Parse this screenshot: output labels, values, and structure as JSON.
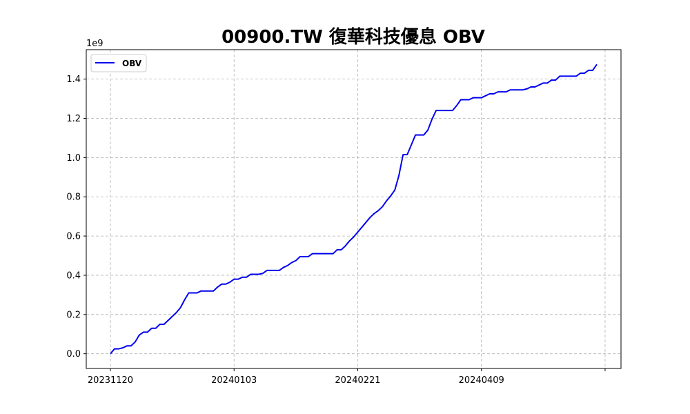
{
  "chart_data": {
    "type": "line",
    "title": "00900.TW 復華科技優息 OBV",
    "xlabel": "",
    "ylabel": "",
    "y_offset_label": "1e9",
    "ylim": [
      -0.075,
      1.55
    ],
    "y_ticks": [
      0.0,
      0.2,
      0.4,
      0.6,
      0.8,
      1.0,
      1.2,
      1.4
    ],
    "y_tick_labels": [
      "0.0",
      "0.2",
      "0.4",
      "0.6",
      "0.8",
      "1.0",
      "1.2",
      "1.4"
    ],
    "x_tick_labels": [
      "20231120",
      "20240103",
      "20240221",
      "20240409",
      ""
    ],
    "x_tick_index": [
      0,
      30,
      60,
      90,
      120
    ],
    "grid": true,
    "legend_position": "upper-left",
    "series": [
      {
        "name": "OBV",
        "color": "#0000ee",
        "values": [
          0.0,
          0.025,
          0.025,
          0.03,
          0.04,
          0.04,
          0.06,
          0.095,
          0.11,
          0.11,
          0.13,
          0.13,
          0.15,
          0.15,
          0.17,
          0.19,
          0.21,
          0.235,
          0.275,
          0.31,
          0.31,
          0.31,
          0.32,
          0.32,
          0.32,
          0.32,
          0.34,
          0.355,
          0.355,
          0.365,
          0.38,
          0.38,
          0.39,
          0.39,
          0.405,
          0.405,
          0.405,
          0.41,
          0.425,
          0.425,
          0.425,
          0.425,
          0.44,
          0.45,
          0.465,
          0.475,
          0.495,
          0.495,
          0.495,
          0.51,
          0.51,
          0.51,
          0.51,
          0.51,
          0.51,
          0.53,
          0.53,
          0.55,
          0.575,
          0.595,
          0.62,
          0.645,
          0.67,
          0.695,
          0.715,
          0.73,
          0.75,
          0.78,
          0.805,
          0.835,
          0.91,
          1.015,
          1.015,
          1.065,
          1.115,
          1.115,
          1.115,
          1.14,
          1.195,
          1.24,
          1.24,
          1.24,
          1.24,
          1.24,
          1.265,
          1.295,
          1.295,
          1.295,
          1.305,
          1.305,
          1.305,
          1.315,
          1.325,
          1.325,
          1.335,
          1.335,
          1.335,
          1.345,
          1.345,
          1.345,
          1.345,
          1.35,
          1.36,
          1.36,
          1.37,
          1.38,
          1.38,
          1.395,
          1.395,
          1.415,
          1.415,
          1.415,
          1.415,
          1.415,
          1.43,
          1.43,
          1.445,
          1.445,
          1.475
        ]
      }
    ]
  }
}
